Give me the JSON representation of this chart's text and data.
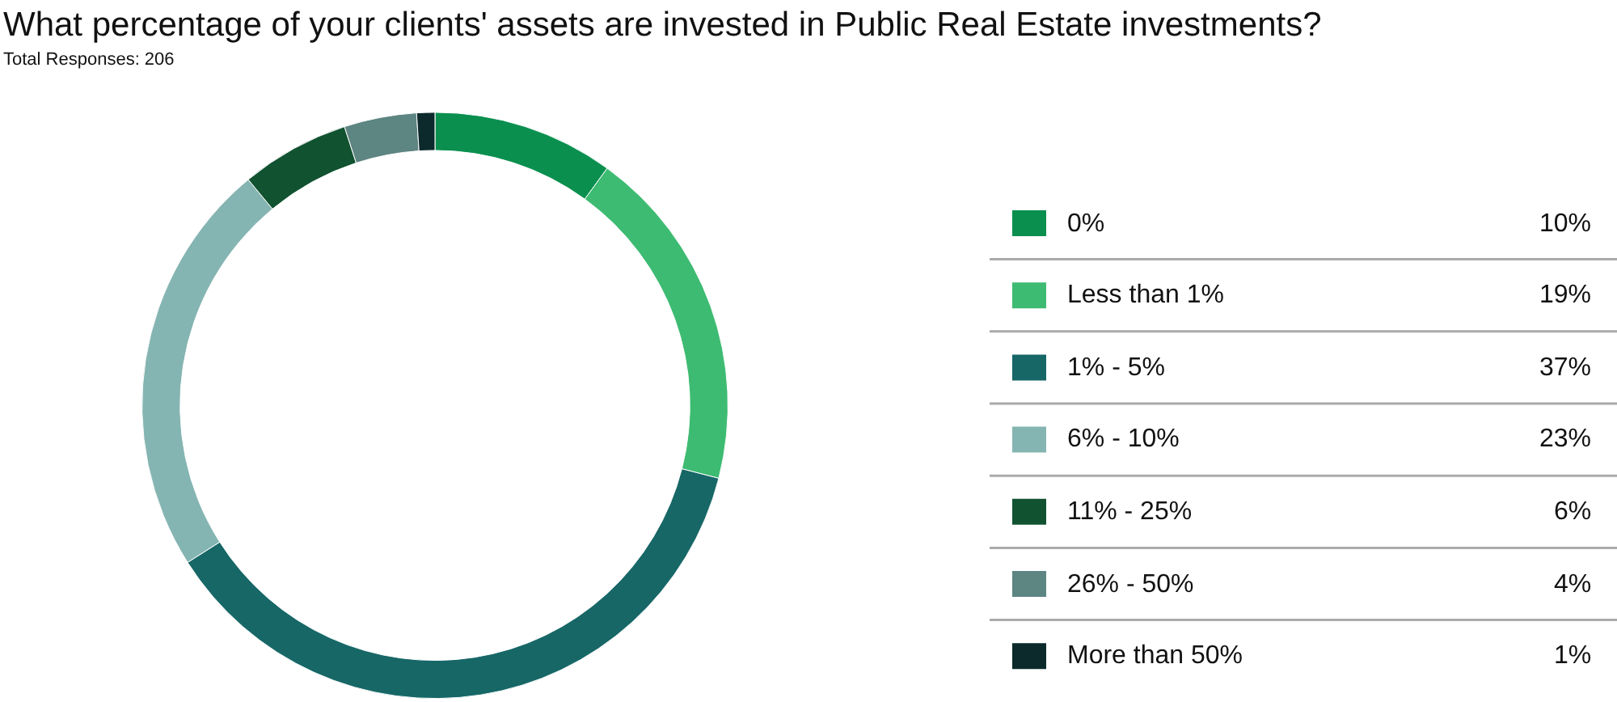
{
  "chart_data": {
    "type": "donut",
    "title": "What percentage of your clients' assets are invested in Public Real Estate investments?",
    "subtitle": "Total Responses: 206",
    "categories": [
      "0%",
      "Less than 1%",
      "1% - 5%",
      "6% - 10%",
      "11% - 25%",
      "26% - 50%",
      "More than 50%"
    ],
    "values": [
      10,
      19,
      37,
      23,
      6,
      4,
      1
    ],
    "value_labels": [
      "10%",
      "19%",
      "37%",
      "23%",
      "6%",
      "4%",
      "1%"
    ],
    "colors": [
      "#0a8f4f",
      "#3dbb72",
      "#176767",
      "#85b5b2",
      "#115230",
      "#5d8582",
      "#0c2a2c"
    ],
    "legend": "right"
  }
}
